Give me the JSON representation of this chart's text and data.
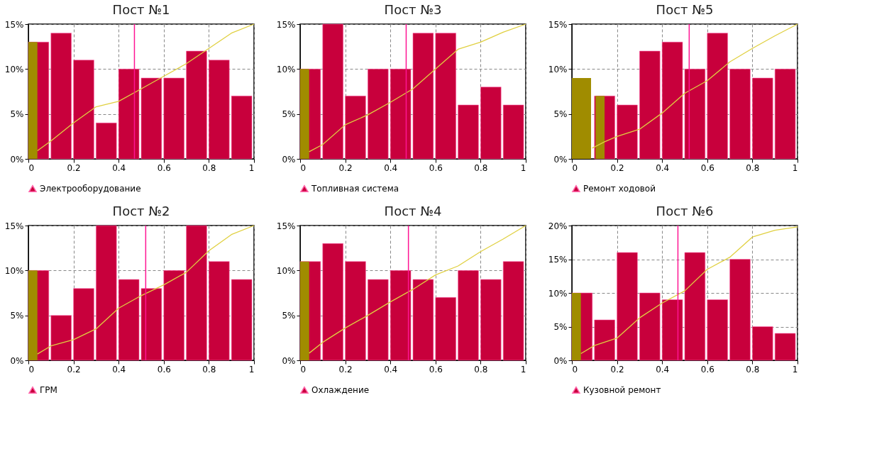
{
  "chart_data": [
    {
      "type": "histogram",
      "title": "Пост №1",
      "bins": [
        0,
        0.1,
        0.2,
        0.3,
        0.4,
        0.5,
        0.6,
        0.7,
        0.8,
        0.9,
        1
      ],
      "xlim": [
        0,
        1
      ],
      "xticks": [
        0,
        0.2,
        0.4,
        0.6,
        0.8,
        1
      ],
      "ylim": [
        0,
        15
      ],
      "yticks": [
        {
          "value": 0,
          "label": "0%"
        },
        {
          "value": 5,
          "label": "5%"
        },
        {
          "value": 10,
          "label": "10%"
        },
        {
          "value": 15,
          "label": "15%"
        }
      ],
      "grid": true,
      "legend": "bottom",
      "series": [
        {
          "name": "Электрооборудование",
          "color": "#c8003c",
          "values": [
            13,
            14,
            11,
            4,
            10,
            9,
            9,
            12,
            11,
            7
          ]
        },
        {
          "type": "histogram",
          "bins": [
            0,
            0.04
          ],
          "color": "#a08c00",
          "values": [
            13
          ]
        },
        {
          "type": "line",
          "color": "#e0d040",
          "x": [
            0.04,
            0.1,
            0.2,
            0.3,
            0.4,
            0.5,
            0.6,
            0.7,
            0.8,
            0.9,
            1
          ],
          "values": [
            0.9,
            2,
            4,
            5.8,
            6.4,
            7.8,
            9.2,
            10.6,
            12.3,
            14,
            15
          ]
        }
      ],
      "ref_lines": [
        {
          "axis": "x",
          "value": 0.47,
          "color": "#ff1493"
        }
      ]
    },
    {
      "type": "histogram",
      "title": "Пост №3",
      "bins": [
        0,
        0.1,
        0.2,
        0.3,
        0.4,
        0.5,
        0.6,
        0.7,
        0.8,
        0.9,
        1
      ],
      "xlim": [
        0,
        1
      ],
      "xticks": [
        0,
        0.2,
        0.4,
        0.6,
        0.8,
        1
      ],
      "ylim": [
        0,
        15
      ],
      "yticks": [
        {
          "value": 0,
          "label": "0%"
        },
        {
          "value": 5,
          "label": "5%"
        },
        {
          "value": 10,
          "label": "10%"
        },
        {
          "value": 15,
          "label": "15%"
        }
      ],
      "grid": true,
      "legend": "bottom",
      "series": [
        {
          "name": "Топливная система",
          "color": "#c8003c",
          "values": [
            10,
            15,
            7,
            10,
            10,
            14,
            14,
            6,
            8,
            6
          ]
        },
        {
          "type": "histogram",
          "bins": [
            0,
            0.04
          ],
          "color": "#a08c00",
          "values": [
            10
          ]
        },
        {
          "type": "line",
          "color": "#e0d040",
          "x": [
            0.04,
            0.1,
            0.2,
            0.3,
            0.4,
            0.5,
            0.6,
            0.7,
            0.8,
            0.9,
            1
          ],
          "values": [
            0.8,
            1.6,
            3.8,
            4.9,
            6.3,
            7.8,
            10,
            12.2,
            13,
            14.1,
            15
          ]
        }
      ],
      "ref_lines": [
        {
          "axis": "x",
          "value": 0.47,
          "color": "#ff1493"
        }
      ]
    },
    {
      "type": "histogram",
      "title": "Пост №5",
      "bins": [
        0,
        0.1,
        0.2,
        0.3,
        0.4,
        0.5,
        0.6,
        0.7,
        0.8,
        0.9,
        1
      ],
      "xlim": [
        0,
        1
      ],
      "xticks": [
        0,
        0.2,
        0.4,
        0.6,
        0.8,
        1
      ],
      "ylim": [
        0,
        15
      ],
      "yticks": [
        {
          "value": 0,
          "label": "0%"
        },
        {
          "value": 5,
          "label": "5%"
        },
        {
          "value": 10,
          "label": "10%"
        },
        {
          "value": 15,
          "label": "15%"
        }
      ],
      "grid": true,
      "legend": "bottom",
      "series": [
        {
          "name": "Ремонт ходовой",
          "color": "#c8003c",
          "values": [
            null,
            7,
            6,
            12,
            13,
            10,
            14,
            10,
            9,
            10
          ]
        },
        {
          "type": "histogram",
          "bins": [
            0,
            0.085,
            0.105,
            0.145
          ],
          "color": "#a08c00",
          "values": [
            9,
            null,
            7
          ]
        },
        {
          "type": "line",
          "color": "#e0d040",
          "x": [
            0.09,
            0.145,
            0.2,
            0.3,
            0.4,
            0.5,
            0.6,
            0.7,
            0.8,
            0.9,
            1
          ],
          "values": [
            1.2,
            1.9,
            2.5,
            3.3,
            5.1,
            7.3,
            8.7,
            10.8,
            12.3,
            13.7,
            15
          ]
        }
      ],
      "ref_lines": [
        {
          "axis": "x",
          "value": 0.52,
          "color": "#ff1493"
        }
      ]
    },
    {
      "type": "histogram",
      "title": "Пост №2",
      "bins": [
        0,
        0.1,
        0.2,
        0.3,
        0.4,
        0.5,
        0.6,
        0.7,
        0.8,
        0.9,
        1
      ],
      "xlim": [
        0,
        1
      ],
      "xticks": [
        0,
        0.2,
        0.4,
        0.6,
        0.8,
        1
      ],
      "ylim": [
        0,
        15
      ],
      "yticks": [
        {
          "value": 0,
          "label": "0%"
        },
        {
          "value": 5,
          "label": "5%"
        },
        {
          "value": 10,
          "label": "10%"
        },
        {
          "value": 15,
          "label": "15%"
        }
      ],
      "grid": true,
      "legend": "bottom",
      "series": [
        {
          "name": "ГРМ",
          "color": "#c8003c",
          "values": [
            10,
            5,
            8,
            15,
            9,
            8,
            10,
            15,
            11,
            9
          ]
        },
        {
          "type": "histogram",
          "bins": [
            0,
            0.04
          ],
          "color": "#a08c00",
          "values": [
            10
          ]
        },
        {
          "type": "line",
          "color": "#e0d040",
          "x": [
            0.04,
            0.1,
            0.2,
            0.3,
            0.4,
            0.5,
            0.6,
            0.7,
            0.8,
            0.9,
            1
          ],
          "values": [
            0.7,
            1.6,
            2.3,
            3.5,
            5.8,
            7.2,
            8.4,
            9.8,
            12.2,
            14,
            15
          ]
        }
      ],
      "ref_lines": [
        {
          "axis": "x",
          "value": 0.52,
          "color": "#ff1493"
        }
      ]
    },
    {
      "type": "histogram",
      "title": "Пост №4",
      "bins": [
        0,
        0.1,
        0.2,
        0.3,
        0.4,
        0.5,
        0.6,
        0.7,
        0.8,
        0.9,
        1
      ],
      "xlim": [
        0,
        1
      ],
      "xticks": [
        0,
        0.2,
        0.4,
        0.6,
        0.8,
        1
      ],
      "ylim": [
        0,
        15
      ],
      "yticks": [
        {
          "value": 0,
          "label": "0%"
        },
        {
          "value": 5,
          "label": "5%"
        },
        {
          "value": 10,
          "label": "10%"
        },
        {
          "value": 15,
          "label": "15%"
        }
      ],
      "grid": true,
      "legend": "bottom",
      "series": [
        {
          "name": "Охлаждение",
          "color": "#c8003c",
          "values": [
            11,
            13,
            11,
            9,
            10,
            9,
            7,
            10,
            9,
            11
          ]
        },
        {
          "type": "histogram",
          "bins": [
            0,
            0.04
          ],
          "color": "#a08c00",
          "values": [
            11
          ]
        },
        {
          "type": "line",
          "color": "#e0d040",
          "x": [
            0.04,
            0.1,
            0.2,
            0.3,
            0.4,
            0.5,
            0.6,
            0.7,
            0.8,
            0.9,
            1
          ],
          "values": [
            0.8,
            2,
            3.6,
            5,
            6.5,
            7.9,
            9.5,
            10.5,
            12.1,
            13.5,
            15
          ]
        }
      ],
      "ref_lines": [
        {
          "axis": "x",
          "value": 0.48,
          "color": "#ff1493"
        }
      ]
    },
    {
      "type": "histogram",
      "title": "Пост №6",
      "bins": [
        0,
        0.1,
        0.2,
        0.3,
        0.4,
        0.5,
        0.6,
        0.7,
        0.8,
        0.9,
        1
      ],
      "xlim": [
        0,
        1
      ],
      "xticks": [
        0,
        0.2,
        0.4,
        0.6,
        0.8,
        1
      ],
      "ylim": [
        0,
        20
      ],
      "yticks": [
        {
          "value": 0,
          "label": "0%"
        },
        {
          "value": 5,
          "label": "5%"
        },
        {
          "value": 10,
          "label": "10%"
        },
        {
          "value": 15,
          "label": "15%"
        },
        {
          "value": 20,
          "label": "20%"
        }
      ],
      "grid": true,
      "legend": "bottom",
      "series": [
        {
          "name": "Кузовной ремонт",
          "color": "#c8003c",
          "values": [
            10,
            6,
            16,
            10,
            9,
            16,
            9,
            15,
            5,
            4
          ]
        },
        {
          "type": "histogram",
          "bins": [
            0,
            0.04
          ],
          "color": "#a08c00",
          "values": [
            10
          ]
        },
        {
          "type": "line",
          "color": "#e0d040",
          "x": [
            0.04,
            0.1,
            0.2,
            0.3,
            0.4,
            0.5,
            0.6,
            0.7,
            0.8,
            0.9,
            1
          ],
          "values": [
            1,
            2.2,
            3.3,
            6.3,
            8.5,
            10.3,
            13.5,
            15.3,
            18.3,
            19.3,
            19.8
          ]
        }
      ],
      "ref_lines": [
        {
          "axis": "x",
          "value": 0.47,
          "color": "#ff1493"
        }
      ]
    }
  ]
}
